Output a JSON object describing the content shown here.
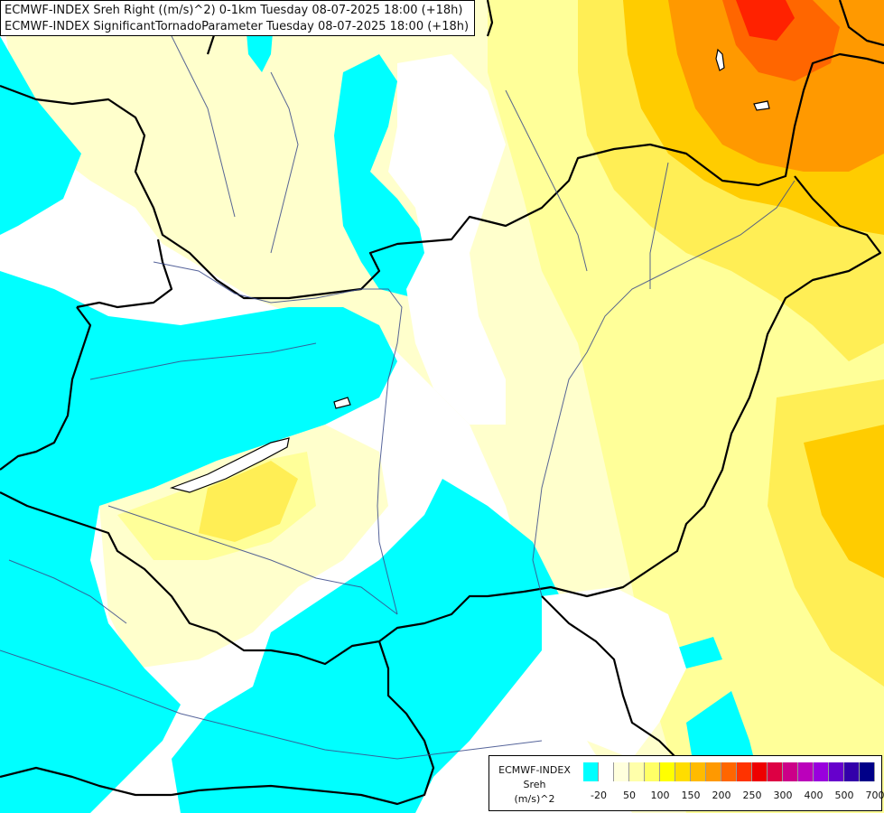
{
  "title": {
    "line1": "ECMWF-INDEX Sreh Right ((m/s)^2) 0-1km Tuesday 08-07-2025 18:00 (+18h)",
    "line2": "ECMWF-INDEX SignificantTornadoParameter Tuesday 08-07-2025 18:00 (+18h)"
  },
  "legend": {
    "line1": "ECMWF-INDEX",
    "line2": "Sreh",
    "line3": "(m/s)^2",
    "colors": [
      "#00ffff",
      "#ffffff",
      "#ffffdd",
      "#ffffaa",
      "#ffff66",
      "#ffff00",
      "#ffdd00",
      "#ffbb00",
      "#ff9900",
      "#ff6600",
      "#ff3300",
      "#ee0000",
      "#dd0044",
      "#cc0088",
      "#bb00bb",
      "#9900dd",
      "#6600cc",
      "#3300aa",
      "#000088"
    ],
    "ticks": [
      {
        "label": "-20",
        "index": 1
      },
      {
        "label": "50",
        "index": 3
      },
      {
        "label": "100",
        "index": 5
      },
      {
        "label": "150",
        "index": 7
      },
      {
        "label": "200",
        "index": 9
      },
      {
        "label": "250",
        "index": 11
      },
      {
        "label": "300",
        "index": 13
      },
      {
        "label": "400",
        "index": 15
      },
      {
        "label": "500",
        "index": 17
      },
      {
        "label": "700",
        "index": 19
      }
    ]
  },
  "map_colors": {
    "cyan": "#00ffff",
    "white": "#ffffff",
    "pale_yellow": "#ffffcc",
    "light_yellow": "#ffff99",
    "yellow": "#ffee55",
    "gold": "#ffcc00",
    "orange": "#ff9900",
    "dark_orange": "#ff6600",
    "red": "#ff2200",
    "border": "#000000",
    "river": "#3a4a8a"
  }
}
